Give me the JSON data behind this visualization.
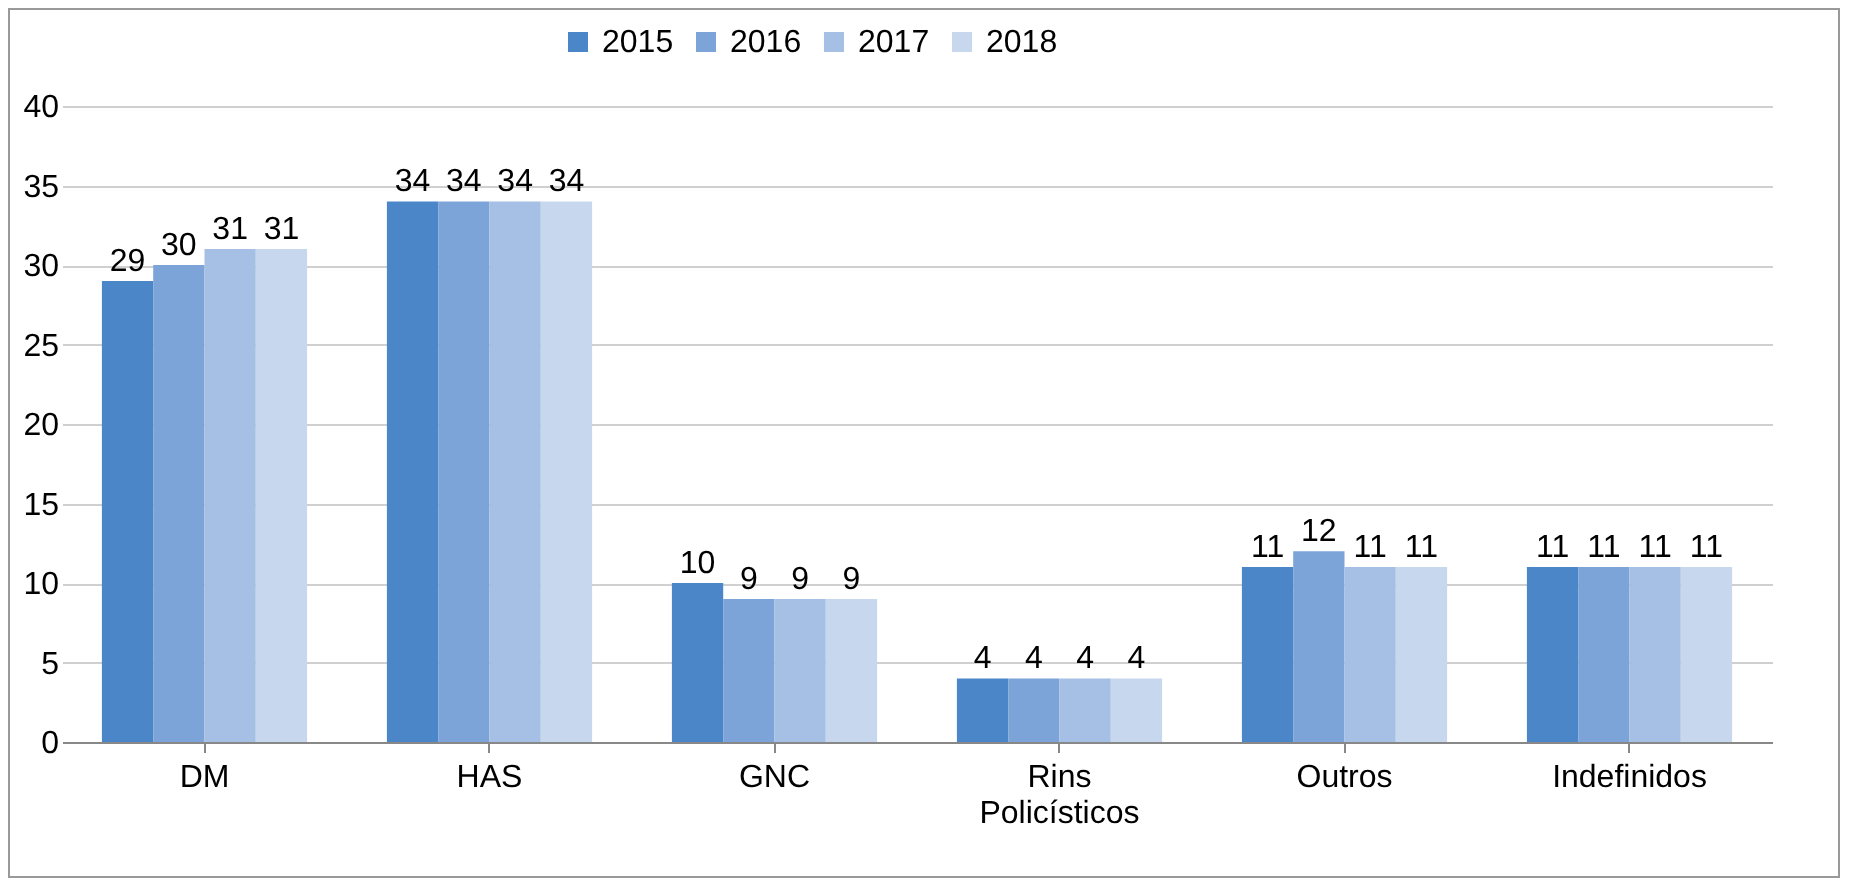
{
  "chart_data": {
    "type": "bar",
    "categories": [
      "DM",
      "HAS",
      "GNC",
      "Rins Policísticos",
      "Outros",
      "Indefinidos"
    ],
    "series": [
      {
        "name": "2015",
        "color": "#4a86c8",
        "values": [
          29,
          34,
          10,
          4,
          11,
          11
        ]
      },
      {
        "name": "2016",
        "color": "#7ca4d8",
        "values": [
          30,
          34,
          9,
          4,
          12,
          11
        ]
      },
      {
        "name": "2017",
        "color": "#a5c0e4",
        "values": [
          31,
          34,
          9,
          4,
          11,
          11
        ]
      },
      {
        "name": "2018",
        "color": "#c6d7ee",
        "values": [
          31,
          34,
          9,
          4,
          11,
          11
        ]
      }
    ],
    "ylim": [
      0,
      40
    ],
    "yticks": [
      0,
      5,
      10,
      15,
      20,
      25,
      30,
      35,
      40
    ],
    "grid": "y",
    "legend": "top",
    "data_labels": true
  }
}
